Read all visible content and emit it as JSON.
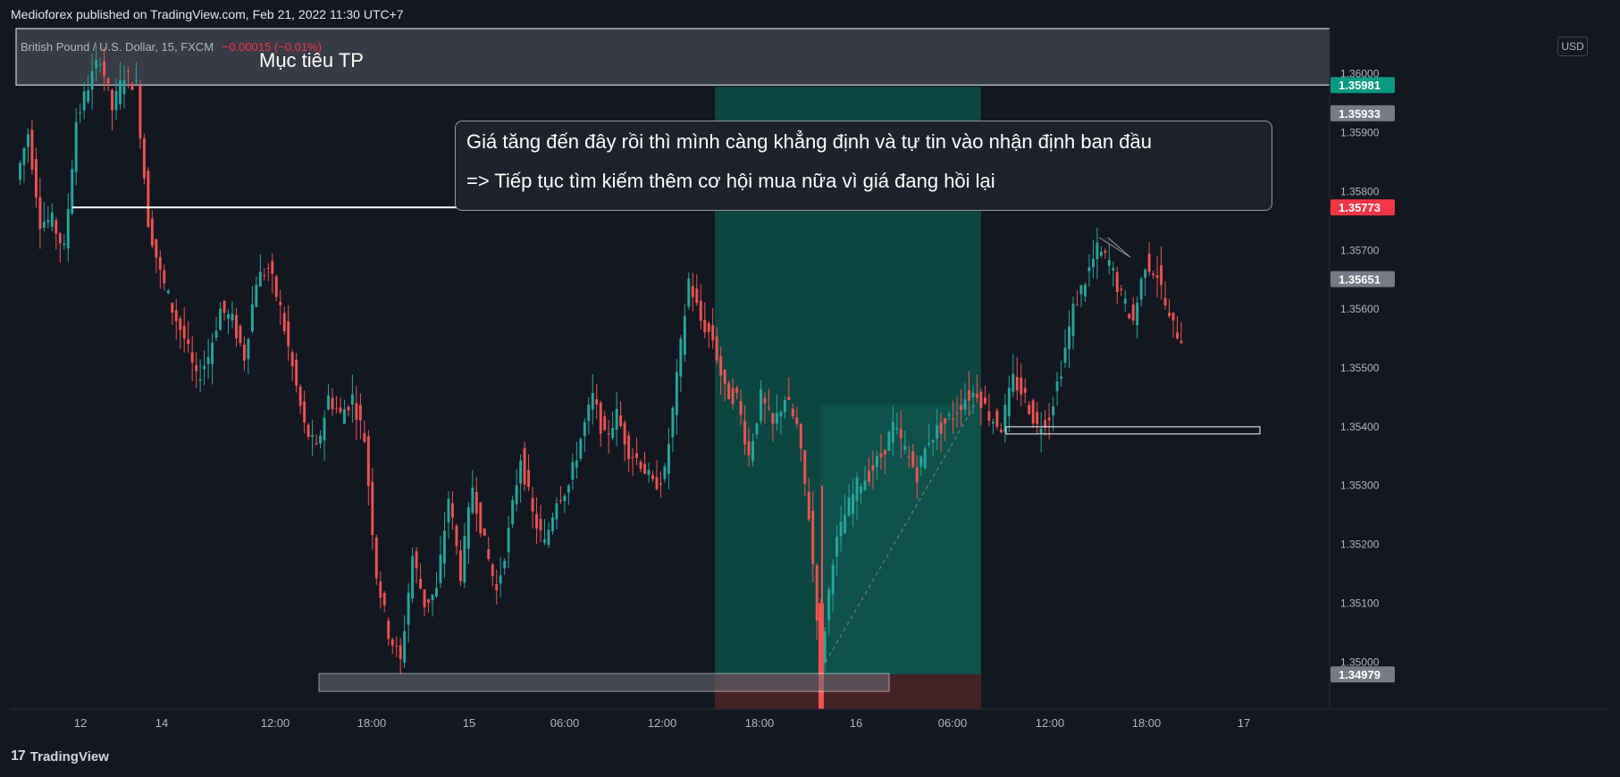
{
  "published_by": "Medioforex published on TradingView.com, Feb 21, 2022 11:30 UTC+7",
  "symbol": {
    "name": "British Pound / U.S. Dollar, 15, FXCM",
    "change": "−0.00015 (−0.01%)"
  },
  "currency_button": "USD",
  "annotations": {
    "tp_label": "Mục tiêu TP",
    "callout_line1": "Giá tăng đến đây rồi thì mình càng khẳng định  và tự tin vào nhận định ban đầu",
    "callout_line2": "=> Tiếp tục tìm kiếm thêm cơ hội mua nữa vì giá đang hồi lại"
  },
  "footer": {
    "brand": "TradingView",
    "logo_text": "17"
  },
  "colors": {
    "background": "#131722",
    "up": "#26a69a",
    "down": "#ef5350",
    "target_zone": "#0d4d47",
    "stop_zone": "#4a2327",
    "tp_band": "#3a3c47"
  },
  "chart_data": {
    "type": "candlestick",
    "symbol": "GBPUSD",
    "timeframe": "15",
    "ylim": [
      1.3492,
      1.3608
    ],
    "y_ticks": [
      "1.36000",
      "1.35900",
      "1.35800",
      "1.35700",
      "1.35600",
      "1.35500",
      "1.35400",
      "1.35300",
      "1.35200",
      "1.35100",
      "1.35000"
    ],
    "x_tick_labels": [
      "12",
      "14",
      "12:00",
      "18:00",
      "15",
      "06:00",
      "12:00",
      "18:00",
      "16",
      "06:00",
      "12:00",
      "18:00",
      "17"
    ],
    "price_labels": [
      {
        "value": "1.35981",
        "color": "#089981"
      },
      {
        "value": "1.35933",
        "color": "#787b86"
      },
      {
        "value": "1.35773",
        "color": "#f23645"
      },
      {
        "value": "1.35651",
        "color": "#787b86"
      },
      {
        "value": "1.34979",
        "color": "#787b86"
      }
    ],
    "path_points": [
      [
        1.3582,
        1.359,
        1.3575,
        1.3575,
        1.357,
        1.3592,
        1.3598,
        1.3603,
        1.3594,
        1.36,
        1.3598,
        1.3575,
        1.3566
      ],
      [
        1.356,
        1.3555,
        1.3548,
        1.3552,
        1.356,
        1.3558,
        1.3552,
        1.3565,
        1.3567,
        1.356,
        1.355,
        1.354,
        1.3536,
        1.3545,
        1.3542,
        1.3545,
        1.3538,
        1.3515,
        1.3505,
        1.35,
        1.3518,
        1.351,
        1.3512,
        1.3528,
        1.3515,
        1.353,
        1.352,
        1.3512,
        1.3522,
        1.3535,
        1.3525,
        1.352,
        1.3528,
        1.353,
        1.3538,
        1.3545,
        1.3538,
        1.3542,
        1.3536,
        1.3534,
        1.353,
        1.3532,
        1.3548,
        1.3565,
        1.3558,
        1.3555,
        1.3546,
        1.3545,
        1.3535,
        1.3545,
        1.354,
        1.3545,
        1.354,
        1.3525,
        1.35,
        1.3518,
        1.3525,
        1.353,
        1.3532,
        1.3535,
        1.354,
        1.3536,
        1.3532,
        1.3538,
        1.354,
        1.3542,
        1.3545,
        1.3546,
        1.3542,
        1.354,
        1.3548,
        1.3545,
        1.354,
        1.3542,
        1.355,
        1.356,
        1.3565,
        1.357,
        1.3568,
        1.3562,
        1.3558,
        1.3568,
        1.3566,
        1.3558,
        1.3555
      ]
    ],
    "horizontal_levels": [
      {
        "name": "tp-target-band",
        "from": 1.35981,
        "to": 1.3608
      },
      {
        "name": "resistance-line",
        "value": 1.35773
      },
      {
        "name": "low-support-box",
        "from": 1.34965,
        "to": 1.34985
      },
      {
        "name": "recent-support-box",
        "from": 1.3539,
        "to": 1.354
      }
    ],
    "position_tool": {
      "entry": 1.34979,
      "target": 1.35981,
      "stop": 1.3492
    }
  }
}
